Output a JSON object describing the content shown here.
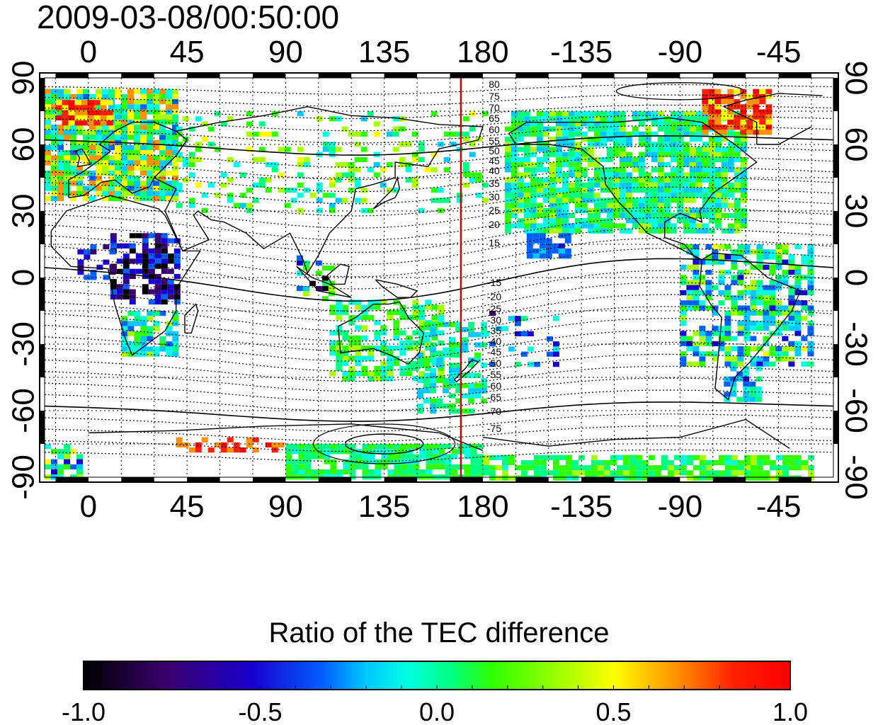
{
  "title": "2009-03-08/00:50:00",
  "axes": {
    "lon_ticks": [
      "0",
      "45",
      "90",
      "135",
      "180",
      "-135",
      "-90",
      "-45"
    ],
    "lat_ticks": [
      "90",
      "60",
      "30",
      "0",
      "-30",
      "-60",
      "-90"
    ]
  },
  "magnetic_latitude_labels": {
    "north": [
      "80",
      "75",
      "70",
      "65",
      "60",
      "55",
      "50",
      "45",
      "40",
      "35",
      "30",
      "25",
      "20",
      "15"
    ],
    "south": [
      "-15",
      "-20",
      "-25",
      "-30",
      "-35",
      "-40",
      "-45",
      "-50",
      "-55",
      "-60",
      "-65",
      "-70",
      "-75"
    ]
  },
  "terminator_lon": 170,
  "colorbar": {
    "title": "Ratio of the TEC difference",
    "ticks": [
      "-1.0",
      "-0.5",
      "0.0",
      "0.5",
      "1.0"
    ],
    "range": [
      -1.0,
      1.0
    ]
  },
  "colors": {
    "terminator": "#cc0000",
    "frame": "#000000"
  }
}
